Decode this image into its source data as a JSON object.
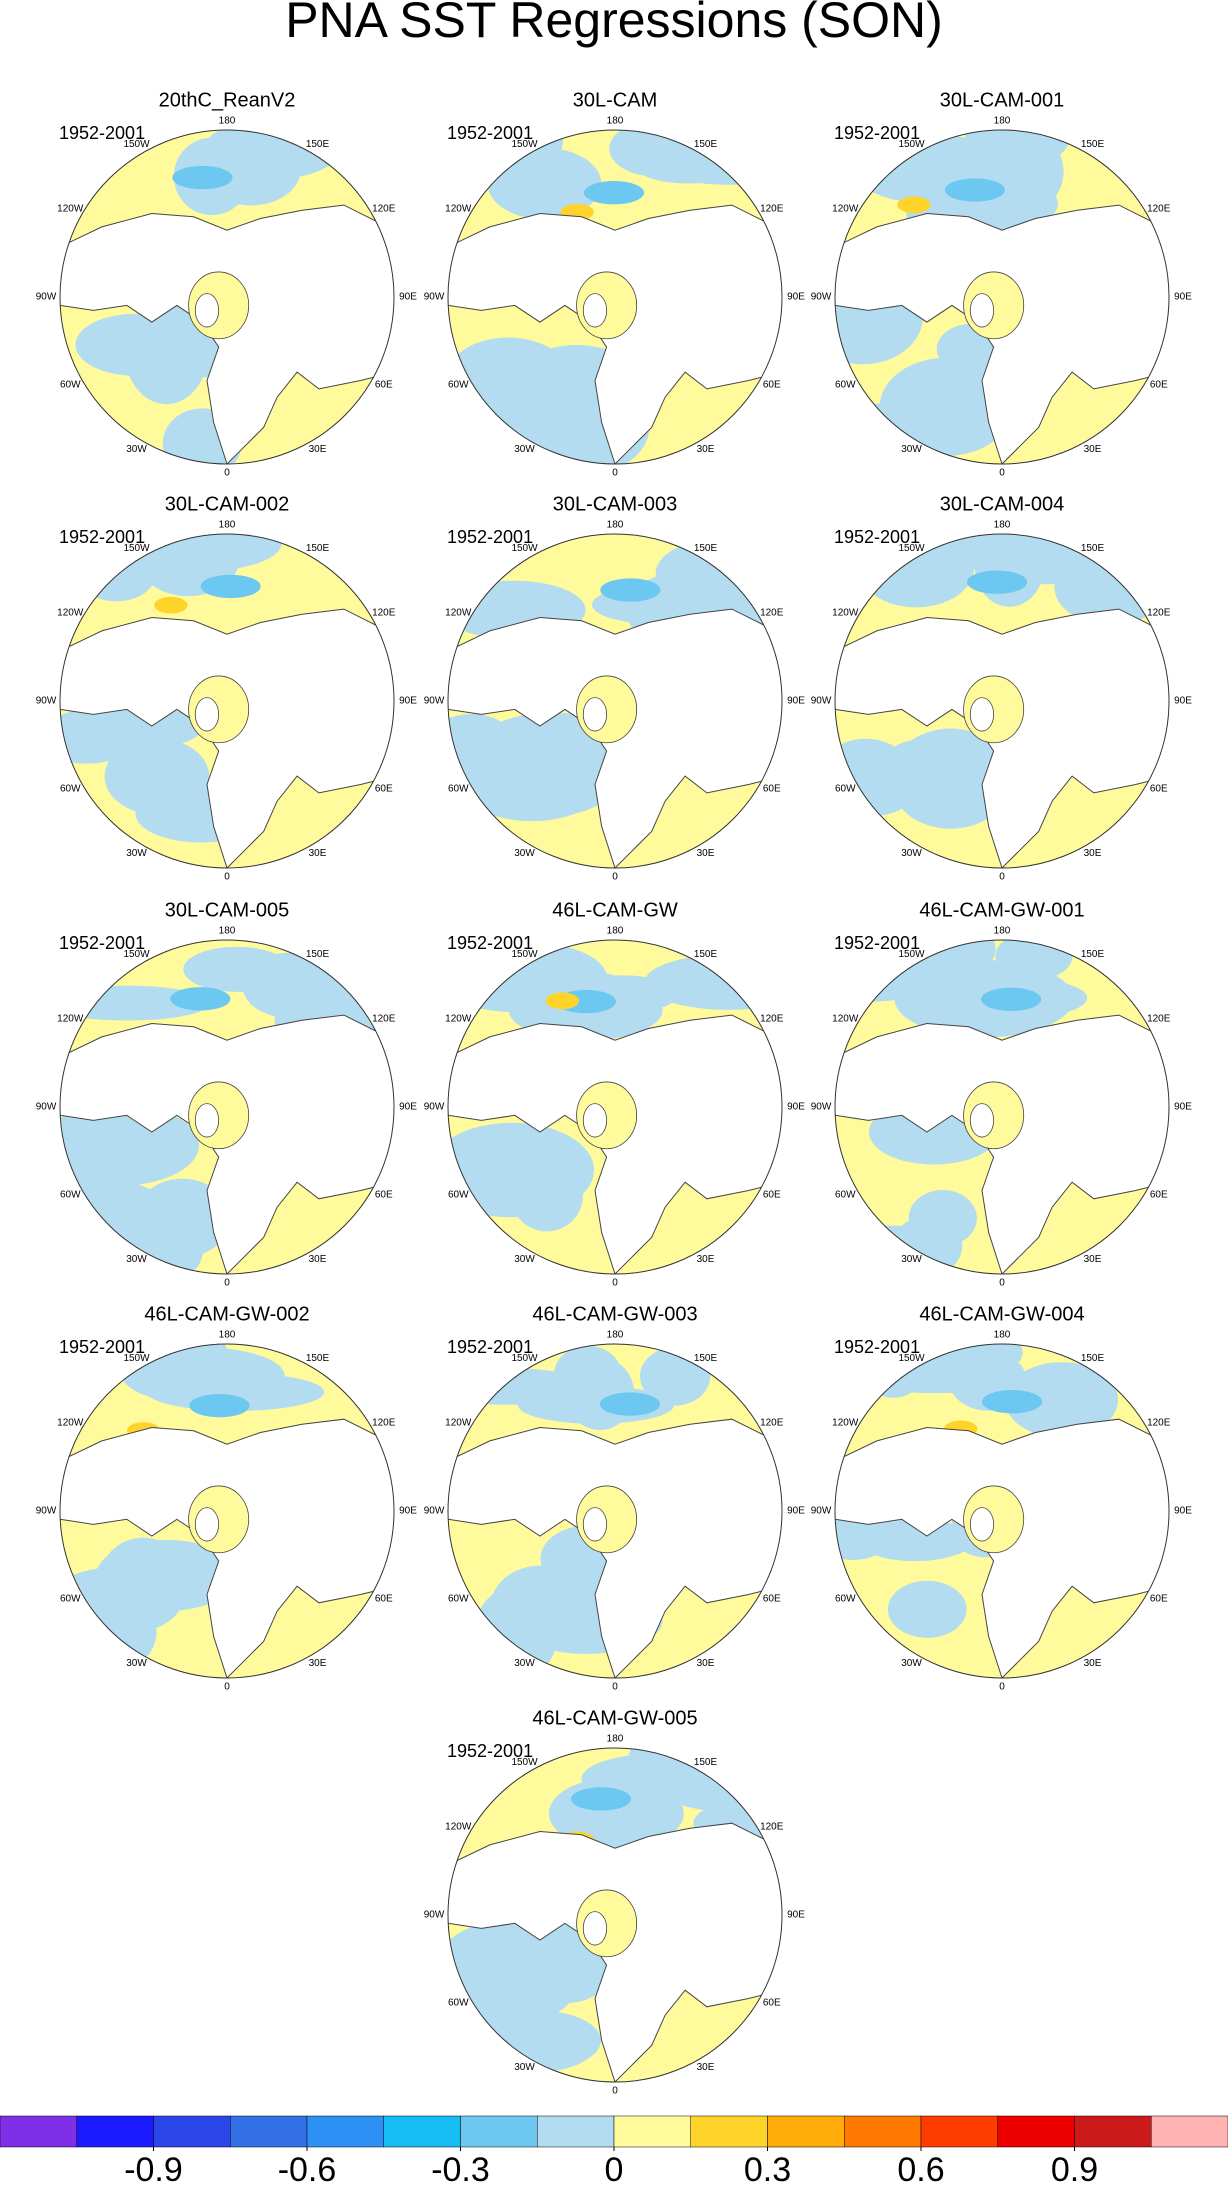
{
  "title": "PNA SST Regressions (SON)",
  "panels": [
    {
      "title": "20thC_ReanV2",
      "period": "1952-2001"
    },
    {
      "title": "30L-CAM",
      "period": "1952-2001"
    },
    {
      "title": "30L-CAM-001",
      "period": "1952-2001"
    },
    {
      "title": "30L-CAM-002",
      "period": "1952-2001"
    },
    {
      "title": "30L-CAM-003",
      "period": "1952-2001"
    },
    {
      "title": "30L-CAM-004",
      "period": "1952-2001"
    },
    {
      "title": "30L-CAM-005",
      "period": "1952-2001"
    },
    {
      "title": "46L-CAM-GW",
      "period": "1952-2001"
    },
    {
      "title": "46L-CAM-GW-001",
      "period": "1952-2001"
    },
    {
      "title": "46L-CAM-GW-002",
      "period": "1952-2001"
    },
    {
      "title": "46L-CAM-GW-003",
      "period": "1952-2001"
    },
    {
      "title": "46L-CAM-GW-004",
      "period": "1952-2001"
    },
    {
      "title": "46L-CAM-GW-005",
      "period": "1952-2001"
    }
  ],
  "longitude_labels": [
    "180",
    "150E",
    "120E",
    "90E",
    "60E",
    "30E",
    "0",
    "30W",
    "60W",
    "90W",
    "120W",
    "150W"
  ],
  "colorbar": {
    "colors": [
      "#7f2fe6",
      "#1a1aff",
      "#2a45e8",
      "#3370e8",
      "#2d90f5",
      "#16bdf5",
      "#6cc8f0",
      "#b3dcf0",
      "#fffa9c",
      "#ffd42a",
      "#ffab0a",
      "#ff7a00",
      "#ff3c00",
      "#ee0000",
      "#cc1a1a",
      "#ffb3b3"
    ],
    "range": [
      -1.2,
      1.2
    ],
    "ticks": [
      -0.9,
      -0.6,
      -0.3,
      0,
      0.3,
      0.6,
      0.9
    ]
  }
}
